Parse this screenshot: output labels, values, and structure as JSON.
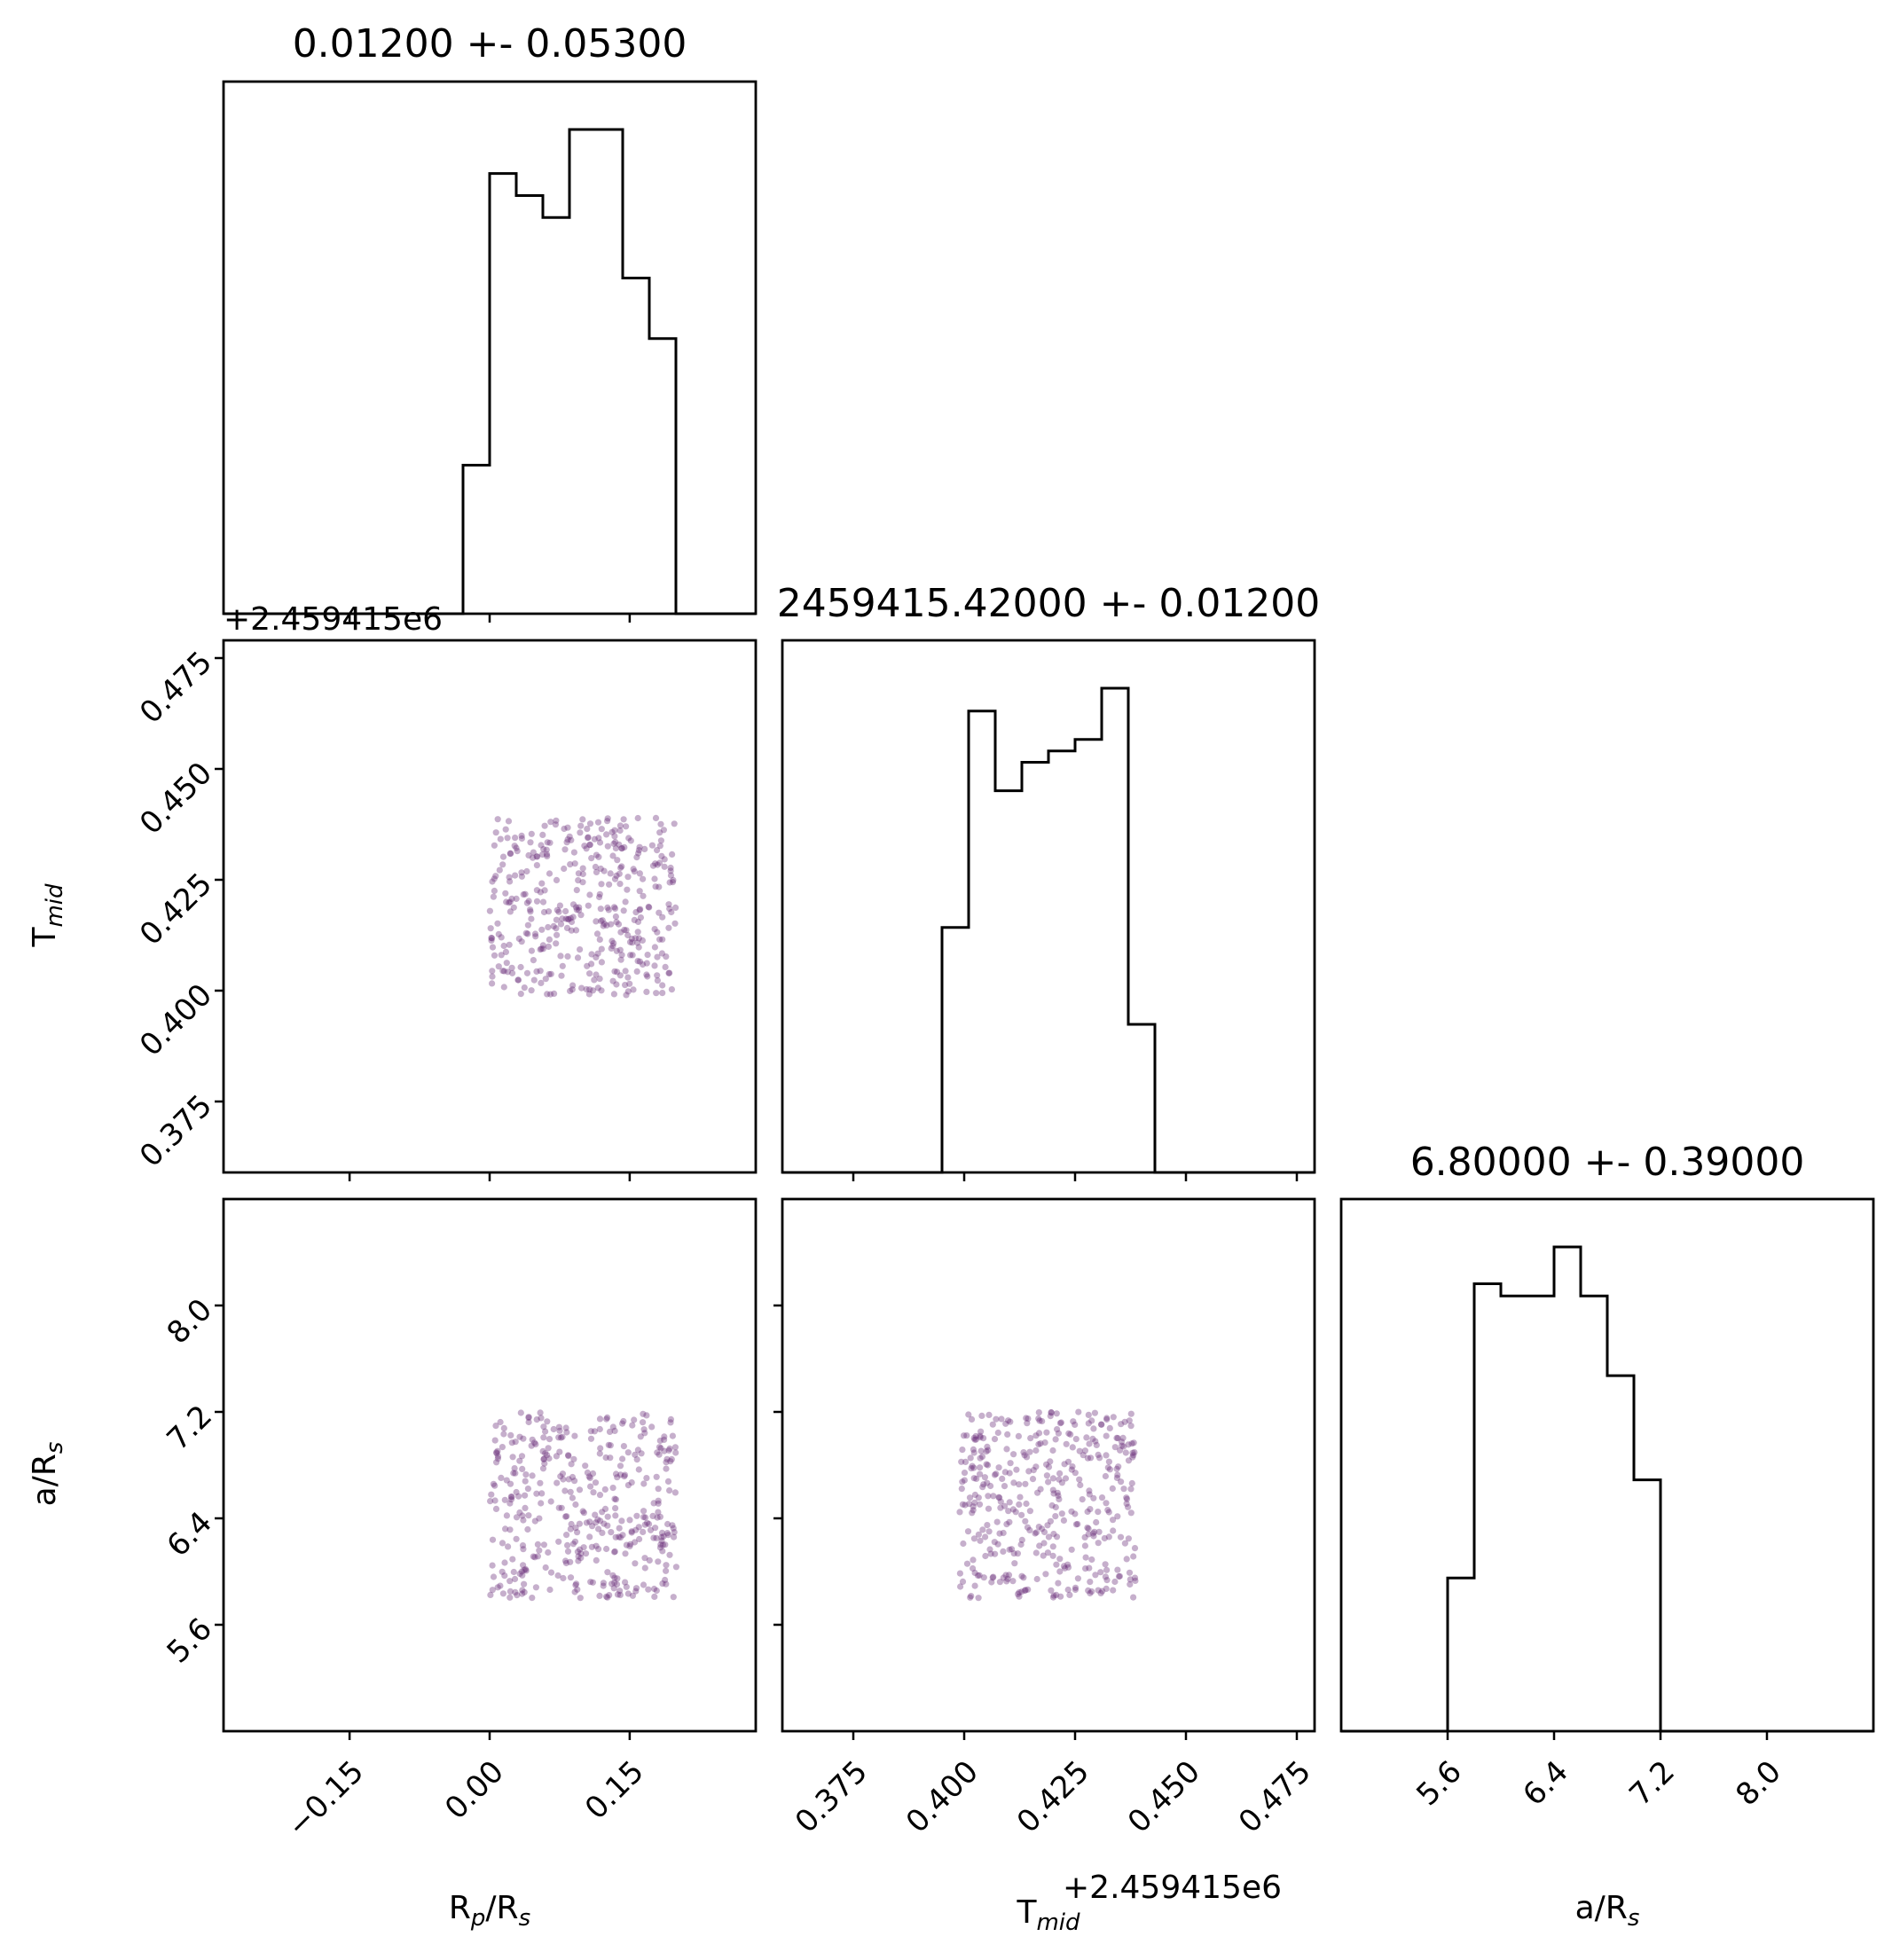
{
  "chart_data": [
    {
      "type": "histogram",
      "panel": "hist-rp",
      "title": "0.01200 +- 0.05300",
      "xlim": [
        -0.285,
        0.285
      ],
      "bin_edges": [
        -0.285,
        -0.2565,
        -0.228,
        -0.1995,
        -0.171,
        -0.1425,
        -0.114,
        -0.0855,
        -0.057,
        -0.0285,
        0.0,
        0.0285,
        0.057,
        0.0855,
        0.114,
        0.1425,
        0.171,
        0.1995,
        0.228,
        0.2565,
        0.285
      ],
      "counts": [
        0,
        0,
        0,
        0,
        0,
        0,
        0,
        0,
        0,
        27,
        80,
        76,
        72,
        88,
        88,
        61,
        50,
        0,
        0,
        0
      ]
    },
    {
      "type": "scatter",
      "panel": "scatter-rp-tmid",
      "x_label": "R_p/R_s",
      "y_label": "T_mid",
      "xlim": [
        -0.285,
        0.285
      ],
      "ylim": [
        0.359,
        0.479
      ],
      "y_offset": "+2.459415e6",
      "y_ticks": [
        "0.375",
        "0.400",
        "0.425",
        "0.450",
        "0.475"
      ],
      "point_color": "#6a2c7a",
      "n_points": 400,
      "x_range": [
        0.0,
        0.2
      ],
      "y_range": [
        0.399,
        0.439
      ]
    },
    {
      "type": "histogram",
      "panel": "hist-tmid",
      "title": "2459415.42000 +- 0.01200",
      "xlim": [
        0.359,
        0.479
      ],
      "bin_edges": [
        0.359,
        0.365,
        0.371,
        0.377,
        0.383,
        0.389,
        0.395,
        0.401,
        0.407,
        0.413,
        0.419,
        0.425,
        0.431,
        0.437,
        0.443,
        0.449,
        0.455,
        0.461,
        0.467,
        0.473,
        0.479
      ],
      "counts": [
        0,
        0,
        0,
        0,
        0,
        0,
        43,
        81,
        67,
        72,
        74,
        76,
        85,
        26,
        0,
        0,
        0,
        0,
        0,
        0
      ]
    },
    {
      "type": "scatter",
      "panel": "scatter-rp-a",
      "x_label": "R_p/R_s",
      "y_label": "a/R_s",
      "xlim": [
        -0.285,
        0.285
      ],
      "ylim": [
        4.8,
        8.8
      ],
      "point_color": "#6a2c7a",
      "n_points": 400,
      "x_range": [
        0.0,
        0.2
      ],
      "y_range": [
        5.8,
        7.2
      ]
    },
    {
      "type": "scatter",
      "panel": "scatter-tmid-a",
      "x_label": "T_mid",
      "y_label": "a/R_s",
      "xlim": [
        0.359,
        0.479
      ],
      "ylim": [
        4.8,
        8.8
      ],
      "point_color": "#6a2c7a",
      "n_points": 400,
      "x_range": [
        0.399,
        0.439
      ],
      "y_range": [
        5.8,
        7.2
      ]
    },
    {
      "type": "histogram",
      "panel": "hist-a",
      "title": "6.80000 +- 0.39000",
      "xlim": [
        4.8,
        8.8
      ],
      "bin_edges": [
        4.8,
        5.0,
        5.2,
        5.4,
        5.6,
        5.8,
        6.0,
        6.2,
        6.4,
        6.6,
        6.8,
        7.0,
        7.2,
        7.4,
        7.6,
        7.8,
        8.0,
        8.2,
        8.4,
        8.6,
        8.8
      ],
      "counts": [
        0,
        0,
        0,
        0,
        25,
        73,
        71,
        71,
        79,
        71,
        58,
        41,
        0,
        0,
        0,
        0,
        0,
        0,
        0,
        0
      ]
    }
  ],
  "axes": {
    "rp": {
      "label_main": "R",
      "label_sub": "p",
      "label_rest": "/R",
      "label_sub2": "s",
      "ticks": [
        "−0.15",
        "0.00",
        "0.15"
      ],
      "tick_values": [
        -0.15,
        0.0,
        0.15
      ]
    },
    "tmid": {
      "label_main": "T",
      "label_sub": "mid",
      "offset": "+2.459415e6",
      "ticks": [
        "0.375",
        "0.400",
        "0.425",
        "0.450",
        "0.475"
      ],
      "tick_values": [
        0.375,
        0.4,
        0.425,
        0.45,
        0.475
      ]
    },
    "a": {
      "label_main": "a/R",
      "label_sub": "s",
      "ticks": [
        "5.6",
        "6.4",
        "7.2",
        "8.0"
      ],
      "tick_values": [
        5.6,
        6.4,
        7.2,
        8.0
      ]
    }
  }
}
